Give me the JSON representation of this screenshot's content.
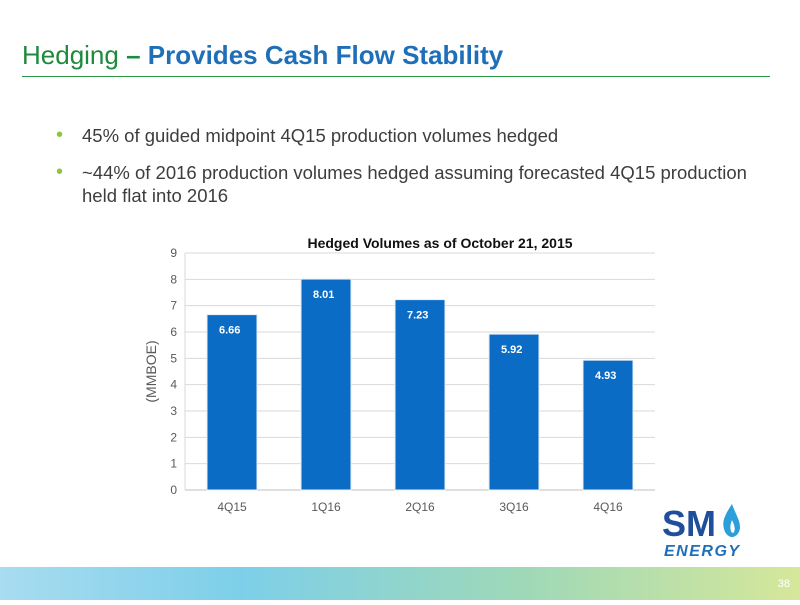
{
  "slide": {
    "title_plain": "Hedging",
    "title_separator": " – ",
    "title_bold": "Provides Cash Flow Stability",
    "bullets": [
      "45% of guided midpoint 4Q15 production volumes hedged",
      "~44% of 2016 production volumes hedged assuming forecasted 4Q15 production held flat into 2016"
    ],
    "page_number": "38",
    "logo": {
      "text_main": "SM",
      "text_sub": "ENERGY",
      "icon": "flame-icon",
      "colors": {
        "main": "#1f4e9a",
        "sub": "#1f6fb8",
        "flame": "#2b9fd9"
      }
    }
  },
  "colors": {
    "title_green": "#1e8a3c",
    "title_blue": "#1f6fb8",
    "bullet_green": "#8cc63f",
    "bar_blue": "#0a6cc4",
    "grid": "#d9d9d9"
  },
  "chart_data": {
    "type": "bar",
    "title": "Hedged Volumes as of October 21, 2015",
    "xlabel": "",
    "ylabel": "(MMBOE)",
    "categories": [
      "4Q15",
      "1Q16",
      "2Q16",
      "3Q16",
      "4Q16"
    ],
    "values": [
      6.66,
      8.01,
      7.23,
      5.92,
      4.93
    ],
    "data_labels": [
      "6.66",
      "8.01",
      "7.23",
      "5.92",
      "4.93"
    ],
    "ylim": [
      0,
      9
    ],
    "yticks": [
      0,
      1,
      2,
      3,
      4,
      5,
      6,
      7,
      8,
      9
    ],
    "grid": true,
    "legend": "none"
  }
}
